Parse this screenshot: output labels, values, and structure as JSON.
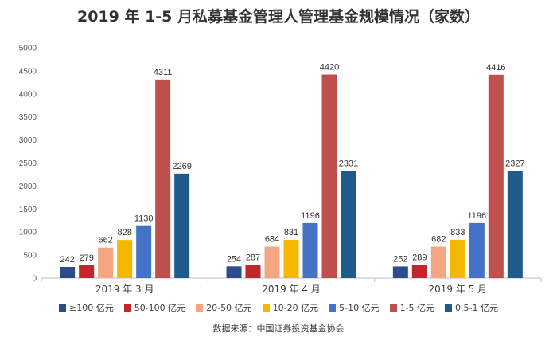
{
  "chart_data": {
    "type": "bar",
    "title": "2019 年 1-5 月私募基金管理人管理基金规模情况（家数）",
    "categories": [
      "2019 年 3 月",
      "2019 年 4 月",
      "2019 年 5 月"
    ],
    "series": [
      {
        "name": "≥100 亿元",
        "color": "#2e4c8c",
        "values": [
          242,
          254,
          252
        ]
      },
      {
        "name": "50-100 亿元",
        "color": "#c0262c",
        "values": [
          279,
          287,
          289
        ]
      },
      {
        "name": "20-50 亿元",
        "color": "#f4a582",
        "values": [
          662,
          684,
          682
        ]
      },
      {
        "name": "10-20 亿元",
        "color": "#f5b800",
        "values": [
          828,
          831,
          833
        ]
      },
      {
        "name": "5-10 亿元",
        "color": "#4472c4",
        "values": [
          1130,
          1196,
          1196
        ]
      },
      {
        "name": "1-5 亿元",
        "color": "#c0504d",
        "values": [
          4311,
          4420,
          4416
        ]
      },
      {
        "name": "0.5-1  亿元",
        "color": "#1f5c8b",
        "values": [
          2269,
          2331,
          2327
        ]
      }
    ],
    "ylim": [
      0,
      5000
    ],
    "yticks": [
      0,
      500,
      1000,
      1500,
      2000,
      2500,
      3000,
      3500,
      4000,
      4500,
      5000
    ],
    "grid": false,
    "legend_position": "bottom",
    "source": "数据来源：中国证券投资基金协会"
  }
}
